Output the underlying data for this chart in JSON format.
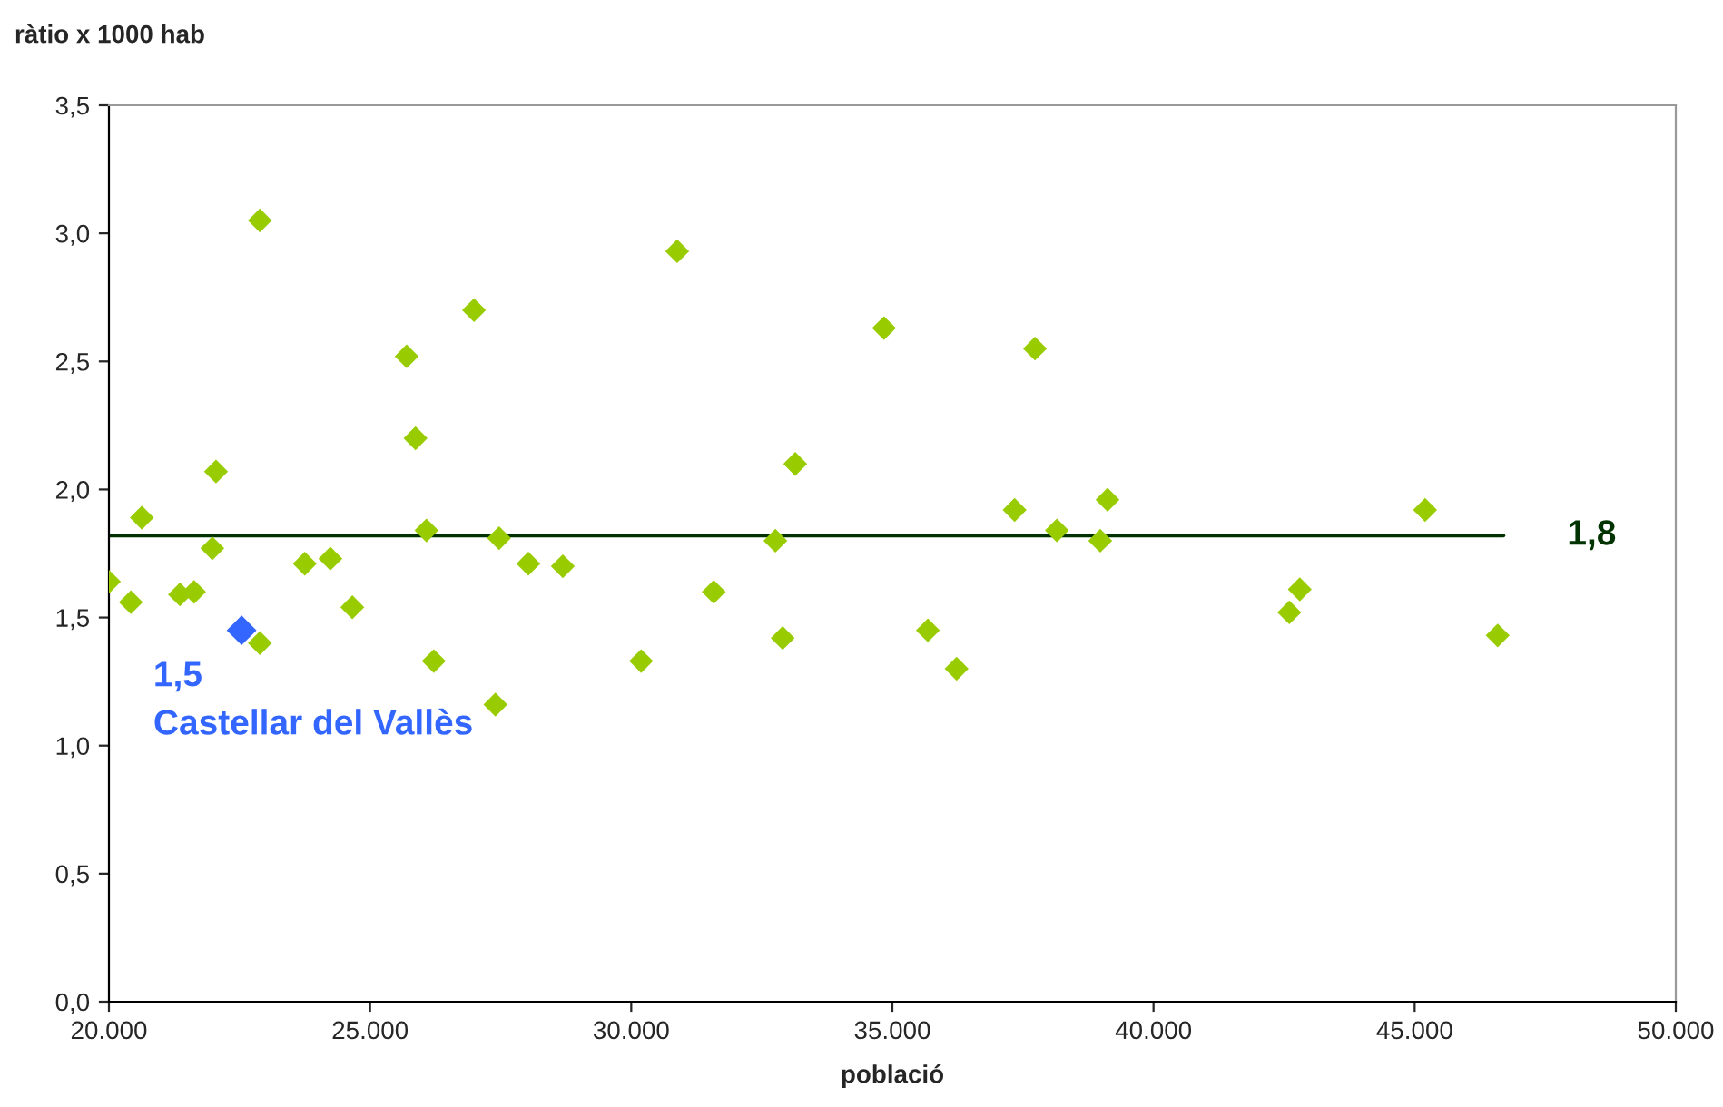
{
  "chart_data": {
    "type": "scatter",
    "xlabel": "població",
    "ylabel": "ràtio x 1000 hab",
    "marker": "diamond",
    "grid": false,
    "legend": false,
    "series": [
      {
        "color": "#99cc00",
        "x": [
          20000,
          20420,
          20630,
          21360,
          21630,
          21980,
          22050,
          22890,
          22890,
          23750,
          24240,
          24660,
          25700,
          25870,
          26080,
          26220,
          26990,
          27400,
          27470,
          28030,
          28690,
          30190,
          30880,
          31580,
          32760,
          32900,
          33140,
          34840,
          35680,
          36230,
          37340,
          37730,
          38150,
          38980,
          39120,
          42600,
          42800,
          45200,
          46590
        ],
        "values": [
          1.64,
          1.56,
          1.89,
          1.59,
          1.6,
          1.77,
          2.07,
          3.05,
          1.4,
          1.71,
          1.73,
          1.54,
          2.52,
          2.2,
          1.84,
          1.33,
          2.7,
          1.16,
          1.81,
          1.71,
          1.7,
          1.33,
          2.93,
          1.6,
          1.8,
          1.42,
          2.1,
          2.63,
          1.45,
          1.3,
          1.92,
          2.55,
          1.84,
          1.8,
          1.96,
          1.52,
          1.61,
          1.92,
          1.43
        ]
      },
      {
        "color": "#3366ff",
        "x": [
          22540
        ],
        "values": [
          1.45
        ]
      }
    ],
    "annotations": [
      {
        "text": "1,5\nCastellar del Vallès",
        "x": 22540,
        "y": 1.45
      }
    ],
    "ref_lines": [
      {
        "axis": "y",
        "value": 1.82,
        "label": "1,8",
        "color": "#003300"
      }
    ],
    "xlim": [
      20000,
      50000
    ],
    "xticks": [
      {
        "value": 20000,
        "label": "20.000"
      },
      {
        "value": 25000,
        "label": "25.000"
      },
      {
        "value": 30000,
        "label": "30.000"
      },
      {
        "value": 35000,
        "label": "35.000"
      },
      {
        "value": 40000,
        "label": "40.000"
      },
      {
        "value": 45000,
        "label": "45.000"
      },
      {
        "value": 50000,
        "label": "50.000"
      }
    ],
    "ylim": [
      0,
      3.5
    ],
    "yticks": [
      {
        "value": 0,
        "label": "0,0"
      },
      {
        "value": 0.5,
        "label": "0,5"
      },
      {
        "value": 1,
        "label": "1,0"
      },
      {
        "value": 1.5,
        "label": "1,5"
      },
      {
        "value": 2,
        "label": "2,0"
      },
      {
        "value": 2.5,
        "label": "2,5"
      },
      {
        "value": 3,
        "label": "3,0"
      },
      {
        "value": 3.5,
        "label": "3,5"
      }
    ]
  }
}
